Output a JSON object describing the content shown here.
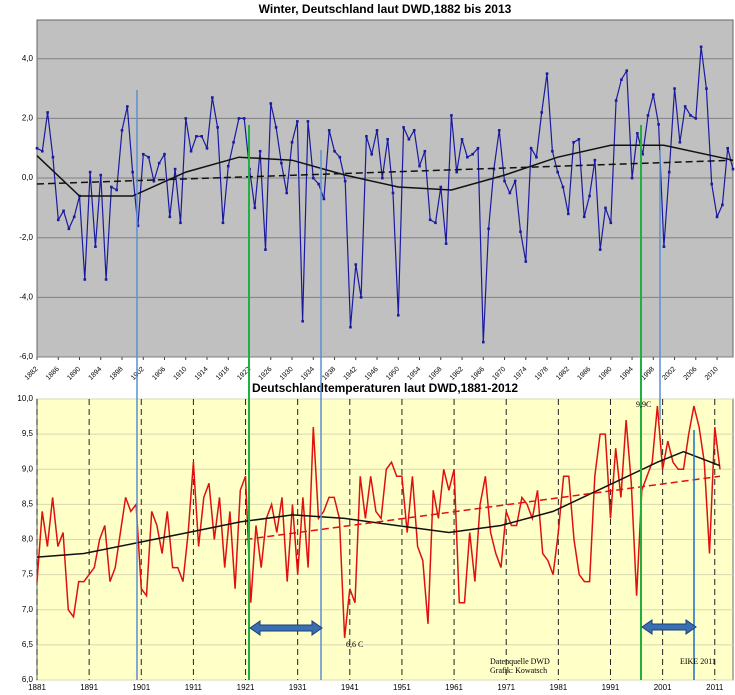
{
  "chart_data": [
    {
      "type": "line",
      "title": "Winter, Deutschland laut DWD,1882 bis 2013",
      "background": "#c0c0c0",
      "xlim": [
        1882,
        2013
      ],
      "ylim": [
        -6,
        5.3
      ],
      "yticks": [
        {
          "value": 4,
          "label": "4,0"
        },
        {
          "value": 2,
          "label": "2,0"
        },
        {
          "value": 0,
          "label": "0,0"
        },
        {
          "value": -2,
          "label": "-2,0"
        },
        {
          "value": -4,
          "label": "-4,0"
        },
        {
          "value": -6,
          "label": "-6,0"
        }
      ],
      "xticks": [
        1882,
        1886,
        1890,
        1894,
        1898,
        1902,
        1906,
        1910,
        1914,
        1918,
        1922,
        1926,
        1930,
        1934,
        1938,
        1942,
        1946,
        1950,
        1954,
        1958,
        1962,
        1966,
        1970,
        1974,
        1978,
        1982,
        1986,
        1990,
        1994,
        1998,
        2002,
        2006,
        2010
      ],
      "grid": [
        "y"
      ],
      "x": [
        1882,
        1883,
        1884,
        1885,
        1886,
        1887,
        1888,
        1889,
        1890,
        1891,
        1892,
        1893,
        1894,
        1895,
        1896,
        1897,
        1898,
        1899,
        1900,
        1901,
        1902,
        1903,
        1904,
        1905,
        1906,
        1907,
        1908,
        1909,
        1910,
        1911,
        1912,
        1913,
        1914,
        1915,
        1916,
        1917,
        1918,
        1919,
        1920,
        1921,
        1922,
        1923,
        1924,
        1925,
        1926,
        1927,
        1928,
        1929,
        1930,
        1931,
        1932,
        1933,
        1934,
        1935,
        1936,
        1937,
        1938,
        1939,
        1940,
        1941,
        1942,
        1943,
        1944,
        1945,
        1946,
        1947,
        1948,
        1949,
        1950,
        1951,
        1952,
        1953,
        1954,
        1955,
        1956,
        1957,
        1958,
        1959,
        1960,
        1961,
        1962,
        1963,
        1964,
        1965,
        1966,
        1967,
        1968,
        1969,
        1970,
        1971,
        1972,
        1973,
        1974,
        1975,
        1976,
        1977,
        1978,
        1979,
        1980,
        1981,
        1982,
        1983,
        1984,
        1985,
        1986,
        1987,
        1988,
        1989,
        1990,
        1991,
        1992,
        1993,
        1994,
        1995,
        1996,
        1997,
        1998,
        1999,
        2000,
        2001,
        2002,
        2003,
        2004,
        2005,
        2006,
        2007,
        2008,
        2009,
        2010,
        2011,
        2012,
        2013
      ],
      "series": [
        {
          "color": "#1a1aa0",
          "markers": true,
          "values": [
            1.0,
            0.9,
            2.2,
            0.7,
            -1.4,
            -1.1,
            -1.7,
            -1.3,
            -0.6,
            -3.4,
            0.2,
            -2.3,
            0.1,
            -3.4,
            -0.3,
            -0.4,
            1.6,
            2.4,
            0.2,
            -1.6,
            0.8,
            0.7,
            -0.1,
            0.5,
            0.8,
            -1.3,
            0.3,
            -1.5,
            2.0,
            0.9,
            1.4,
            1.4,
            1.0,
            2.7,
            1.7,
            -1.5,
            0.4,
            1.2,
            2.0,
            2.0,
            0.3,
            -1.0,
            0.9,
            -2.4,
            2.5,
            1.7,
            0.5,
            -0.5,
            1.2,
            1.9,
            -4.8,
            1.9,
            0.0,
            -0.2,
            -0.7,
            1.6,
            0.9,
            0.7,
            -0.1,
            -5.0,
            -2.9,
            -4.0,
            1.4,
            0.8,
            1.6,
            0.0,
            1.3,
            -0.5,
            -4.6,
            1.7,
            1.3,
            1.6,
            0.4,
            0.9,
            -1.4,
            -1.5,
            -0.3,
            -2.2,
            2.1,
            0.2,
            1.3,
            0.7,
            0.8,
            1.0,
            -5.5,
            -1.7,
            0.3,
            1.6,
            -0.1,
            -0.5,
            -0.1,
            -1.8,
            -2.8,
            1.0,
            0.7,
            2.2,
            3.5,
            0.9,
            0.2,
            -0.3,
            -1.2,
            1.2,
            1.3,
            -1.3,
            -0.6,
            0.6,
            -2.4,
            -1.0,
            -1.5,
            2.6,
            3.3,
            3.6,
            0.0,
            1.5,
            0.8,
            2.1,
            2.8,
            1.8,
            -2.3,
            0.2,
            3.0,
            1.2,
            2.4,
            2.1,
            2.0,
            4.4,
            3.0,
            -0.2,
            -1.3,
            -0.9,
            1.0,
            0.3
          ]
        },
        {
          "color": "#111111",
          "x": [
            1882,
            1890,
            1900,
            1910,
            1920,
            1930,
            1940,
            1950,
            1960,
            1970,
            1980,
            1990,
            2000,
            2013
          ],
          "values": [
            0.75,
            -0.6,
            -0.6,
            0.2,
            0.7,
            0.6,
            0.1,
            -0.3,
            -0.4,
            0.1,
            0.7,
            1.1,
            1.1,
            0.6
          ]
        },
        {
          "color": "#111111",
          "dash": true,
          "x": [
            1882,
            2013
          ],
          "values": [
            -0.2,
            0.6
          ]
        }
      ]
    },
    {
      "type": "line",
      "title": "Deutschlandtemperaturen laut DWD,1881-2012",
      "background": "#ffffc8",
      "xlim": [
        1881,
        2014.5
      ],
      "ylim": [
        6,
        10
      ],
      "yticks": [
        {
          "value": 10,
          "label": "10,0"
        },
        {
          "value": 9.5,
          "label": "9,5"
        },
        {
          "value": 9,
          "label": "9,0"
        },
        {
          "value": 8.5,
          "label": "8,5"
        },
        {
          "value": 8,
          "label": "8,0"
        },
        {
          "value": 7.5,
          "label": "7,5"
        },
        {
          "value": 7,
          "label": "7,0"
        },
        {
          "value": 6.5,
          "label": "6,5"
        },
        {
          "value": 6,
          "label": "6,0"
        }
      ],
      "xticks": [
        1881,
        1891,
        1901,
        1911,
        1921,
        1931,
        1941,
        1951,
        1961,
        1971,
        1981,
        1991,
        2001,
        2011
      ],
      "grid": [
        "x",
        "y"
      ],
      "x": [
        1881,
        1882,
        1883,
        1884,
        1885,
        1886,
        1887,
        1888,
        1889,
        1890,
        1891,
        1892,
        1893,
        1894,
        1895,
        1896,
        1897,
        1898,
        1899,
        1900,
        1901,
        1902,
        1903,
        1904,
        1905,
        1906,
        1907,
        1908,
        1909,
        1910,
        1911,
        1912,
        1913,
        1914,
        1915,
        1916,
        1917,
        1918,
        1919,
        1920,
        1921,
        1922,
        1923,
        1924,
        1925,
        1926,
        1927,
        1928,
        1929,
        1930,
        1931,
        1932,
        1933,
        1934,
        1935,
        1936,
        1937,
        1938,
        1939,
        1940,
        1941,
        1942,
        1943,
        1944,
        1945,
        1946,
        1947,
        1948,
        1949,
        1950,
        1951,
        1952,
        1953,
        1954,
        1955,
        1956,
        1957,
        1958,
        1959,
        1960,
        1961,
        1962,
        1963,
        1964,
        1965,
        1966,
        1967,
        1968,
        1969,
        1970,
        1971,
        1972,
        1973,
        1974,
        1975,
        1976,
        1977,
        1978,
        1979,
        1980,
        1981,
        1982,
        1983,
        1984,
        1985,
        1986,
        1987,
        1988,
        1989,
        1990,
        1991,
        1992,
        1993,
        1994,
        1995,
        1996,
        1997,
        1998,
        1999,
        2000,
        2001,
        2002,
        2003,
        2004,
        2005,
        2006,
        2007,
        2008,
        2009,
        2010,
        2011,
        2012
      ],
      "series": [
        {
          "color": "#e01010",
          "values": [
            7.4,
            8.4,
            7.9,
            8.6,
            7.9,
            8.1,
            7.0,
            6.9,
            7.4,
            7.4,
            7.5,
            7.6,
            8.0,
            8.2,
            7.4,
            7.6,
            8.1,
            8.6,
            8.4,
            8.5,
            7.3,
            7.2,
            8.4,
            8.2,
            7.8,
            8.4,
            7.6,
            7.6,
            7.4,
            8.1,
            9.1,
            7.9,
            8.6,
            8.8,
            8.0,
            8.6,
            7.6,
            8.4,
            7.3,
            8.7,
            8.9,
            7.1,
            8.2,
            7.6,
            8.3,
            8.5,
            8.1,
            8.6,
            7.4,
            8.5,
            7.5,
            8.6,
            7.6,
            9.6,
            8.3,
            8.4,
            8.6,
            8.6,
            8.3,
            6.6,
            7.3,
            7.1,
            8.9,
            8.3,
            8.9,
            8.4,
            8.3,
            9.0,
            9.1,
            8.9,
            8.9,
            8.1,
            8.9,
            7.9,
            7.7,
            6.8,
            8.7,
            8.3,
            9.0,
            8.7,
            9.0,
            7.1,
            7.1,
            8.1,
            7.4,
            8.5,
            8.9,
            8.1,
            7.8,
            7.6,
            8.4,
            8.2,
            8.2,
            8.6,
            8.5,
            8.3,
            8.7,
            7.8,
            7.7,
            7.5,
            8.1,
            8.9,
            8.9,
            8.0,
            7.5,
            7.4,
            7.4,
            8.9,
            9.5,
            9.5,
            8.3,
            9.3,
            8.6,
            9.7,
            8.8,
            7.2,
            8.7,
            8.9,
            9.1,
            9.9,
            9.0,
            9.4,
            9.1,
            9.0,
            9.0,
            9.5,
            9.9,
            9.6,
            9.1,
            7.8,
            9.6,
            9.0
          ]
        },
        {
          "color": "#111111",
          "x": [
            1881,
            1890,
            1900,
            1910,
            1920,
            1930,
            1940,
            1950,
            1960,
            1970,
            1980,
            1990,
            2000,
            2005,
            2012
          ],
          "values": [
            7.75,
            7.8,
            7.95,
            8.1,
            8.25,
            8.35,
            8.3,
            8.2,
            8.1,
            8.2,
            8.4,
            8.75,
            9.1,
            9.25,
            9.05
          ]
        },
        {
          "color": "#e01010",
          "dash": true,
          "x": [
            1921,
            2012
          ],
          "values": [
            8.0,
            8.9
          ]
        }
      ],
      "annotations": [
        "9,9C",
        "6,6 C",
        "Datenquelle DWD",
        "Grafik: Kowatsch",
        "EIKE 2011"
      ]
    }
  ]
}
